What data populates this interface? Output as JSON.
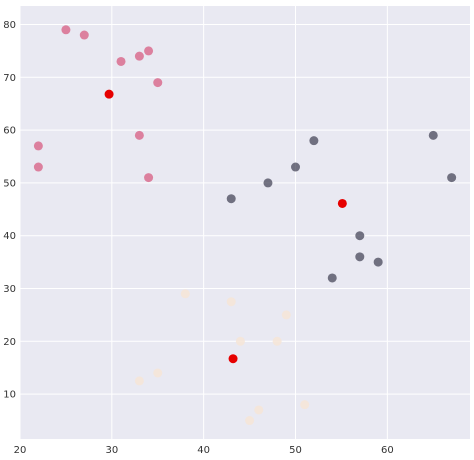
{
  "chart_data": {
    "type": "scatter",
    "title": "",
    "xlabel": "",
    "ylabel": "",
    "xlim": [
      20,
      69
    ],
    "ylim": [
      1.5,
      83.5
    ],
    "grid": true,
    "xticks": [
      20,
      30,
      40,
      50,
      60
    ],
    "yticks": [
      10,
      20,
      30,
      40,
      50,
      60,
      70,
      80
    ],
    "colors": {
      "background": "#e9e9f2",
      "grid": "#ffffff",
      "cluster_pink": "#d6537a",
      "cluster_dark": "#3c3c50",
      "cluster_light": "#f5e6d8",
      "centroid": "#e60000"
    },
    "series": [
      {
        "color": "#d6537a",
        "points": [
          {
            "x": 25,
            "y": 79
          },
          {
            "x": 27,
            "y": 78
          },
          {
            "x": 33,
            "y": 74
          },
          {
            "x": 34,
            "y": 75
          },
          {
            "x": 31,
            "y": 73
          },
          {
            "x": 35,
            "y": 69
          },
          {
            "x": 22,
            "y": 57
          },
          {
            "x": 33,
            "y": 59
          },
          {
            "x": 22,
            "y": 53
          },
          {
            "x": 34,
            "y": 51
          }
        ]
      },
      {
        "color": "#3c3c50",
        "points": [
          {
            "x": 65,
            "y": 59
          },
          {
            "x": 52,
            "y": 58
          },
          {
            "x": 50,
            "y": 53
          },
          {
            "x": 67,
            "y": 51
          },
          {
            "x": 47,
            "y": 50
          },
          {
            "x": 43,
            "y": 47
          },
          {
            "x": 57,
            "y": 40
          },
          {
            "x": 57,
            "y": 36
          },
          {
            "x": 59,
            "y": 35
          },
          {
            "x": 54,
            "y": 32
          }
        ]
      },
      {
        "color": "#f5e6d8",
        "points": [
          {
            "x": 38,
            "y": 29
          },
          {
            "x": 43,
            "y": 27.5
          },
          {
            "x": 49,
            "y": 25
          },
          {
            "x": 44,
            "y": 20
          },
          {
            "x": 48,
            "y": 20
          },
          {
            "x": 35,
            "y": 14
          },
          {
            "x": 33,
            "y": 12.5
          },
          {
            "x": 51,
            "y": 8
          },
          {
            "x": 46,
            "y": 7
          },
          {
            "x": 45,
            "y": 5
          }
        ]
      },
      {
        "color": "#e60000",
        "points": [
          {
            "x": 29.7,
            "y": 66.8
          },
          {
            "x": 55.1,
            "y": 46.1
          },
          {
            "x": 43.2,
            "y": 16.7
          }
        ]
      }
    ]
  }
}
